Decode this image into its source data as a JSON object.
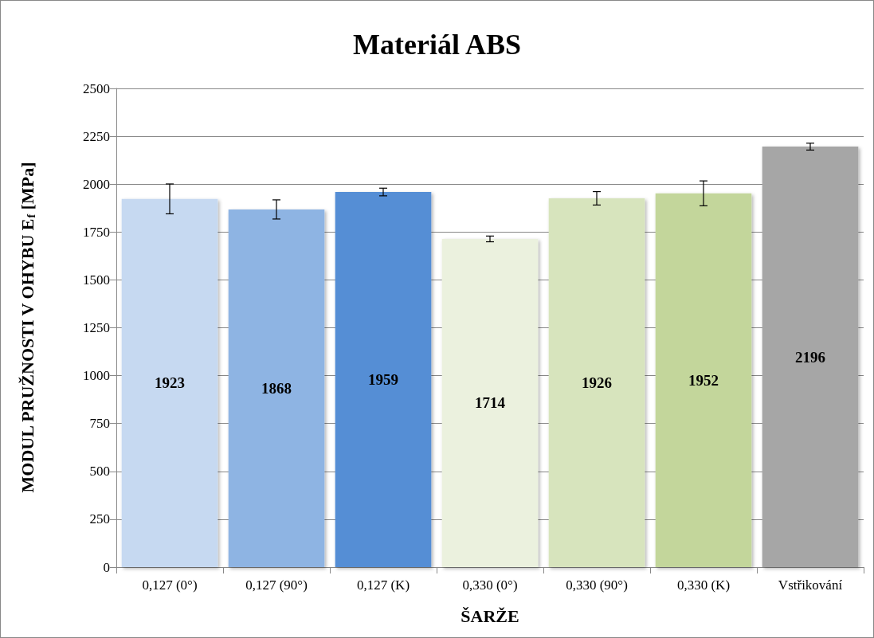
{
  "chart_data": {
    "type": "bar",
    "title": "Materiál ABS",
    "xlabel": "ŠARŽE",
    "ylabel": "MODUL PRUŽNOSTI V OHYBU E$_{f}$ [MPa]",
    "categories": [
      "0,127 (0°)",
      "0,127 (90°)",
      "0,127 (K)",
      "0,330 (0°)",
      "0,330 (90°)",
      "0,330 (K)",
      "Vstřikování"
    ],
    "values": [
      1923,
      1868,
      1959,
      1714,
      1926,
      1952,
      2196
    ],
    "colors": [
      "#c6d9f1",
      "#8eb4e3",
      "#558ed5",
      "#ebf1de",
      "#d7e4bd",
      "#c3d69b",
      "#a6a6a6"
    ],
    "errors": [
      78,
      50,
      20,
      15,
      35,
      65,
      18
    ],
    "ylim": [
      0,
      2500
    ],
    "yticks": [
      0,
      250,
      500,
      750,
      1000,
      1250,
      1500,
      1750,
      2000,
      2250,
      2500
    ],
    "grid": "y",
    "data_labels": true
  }
}
